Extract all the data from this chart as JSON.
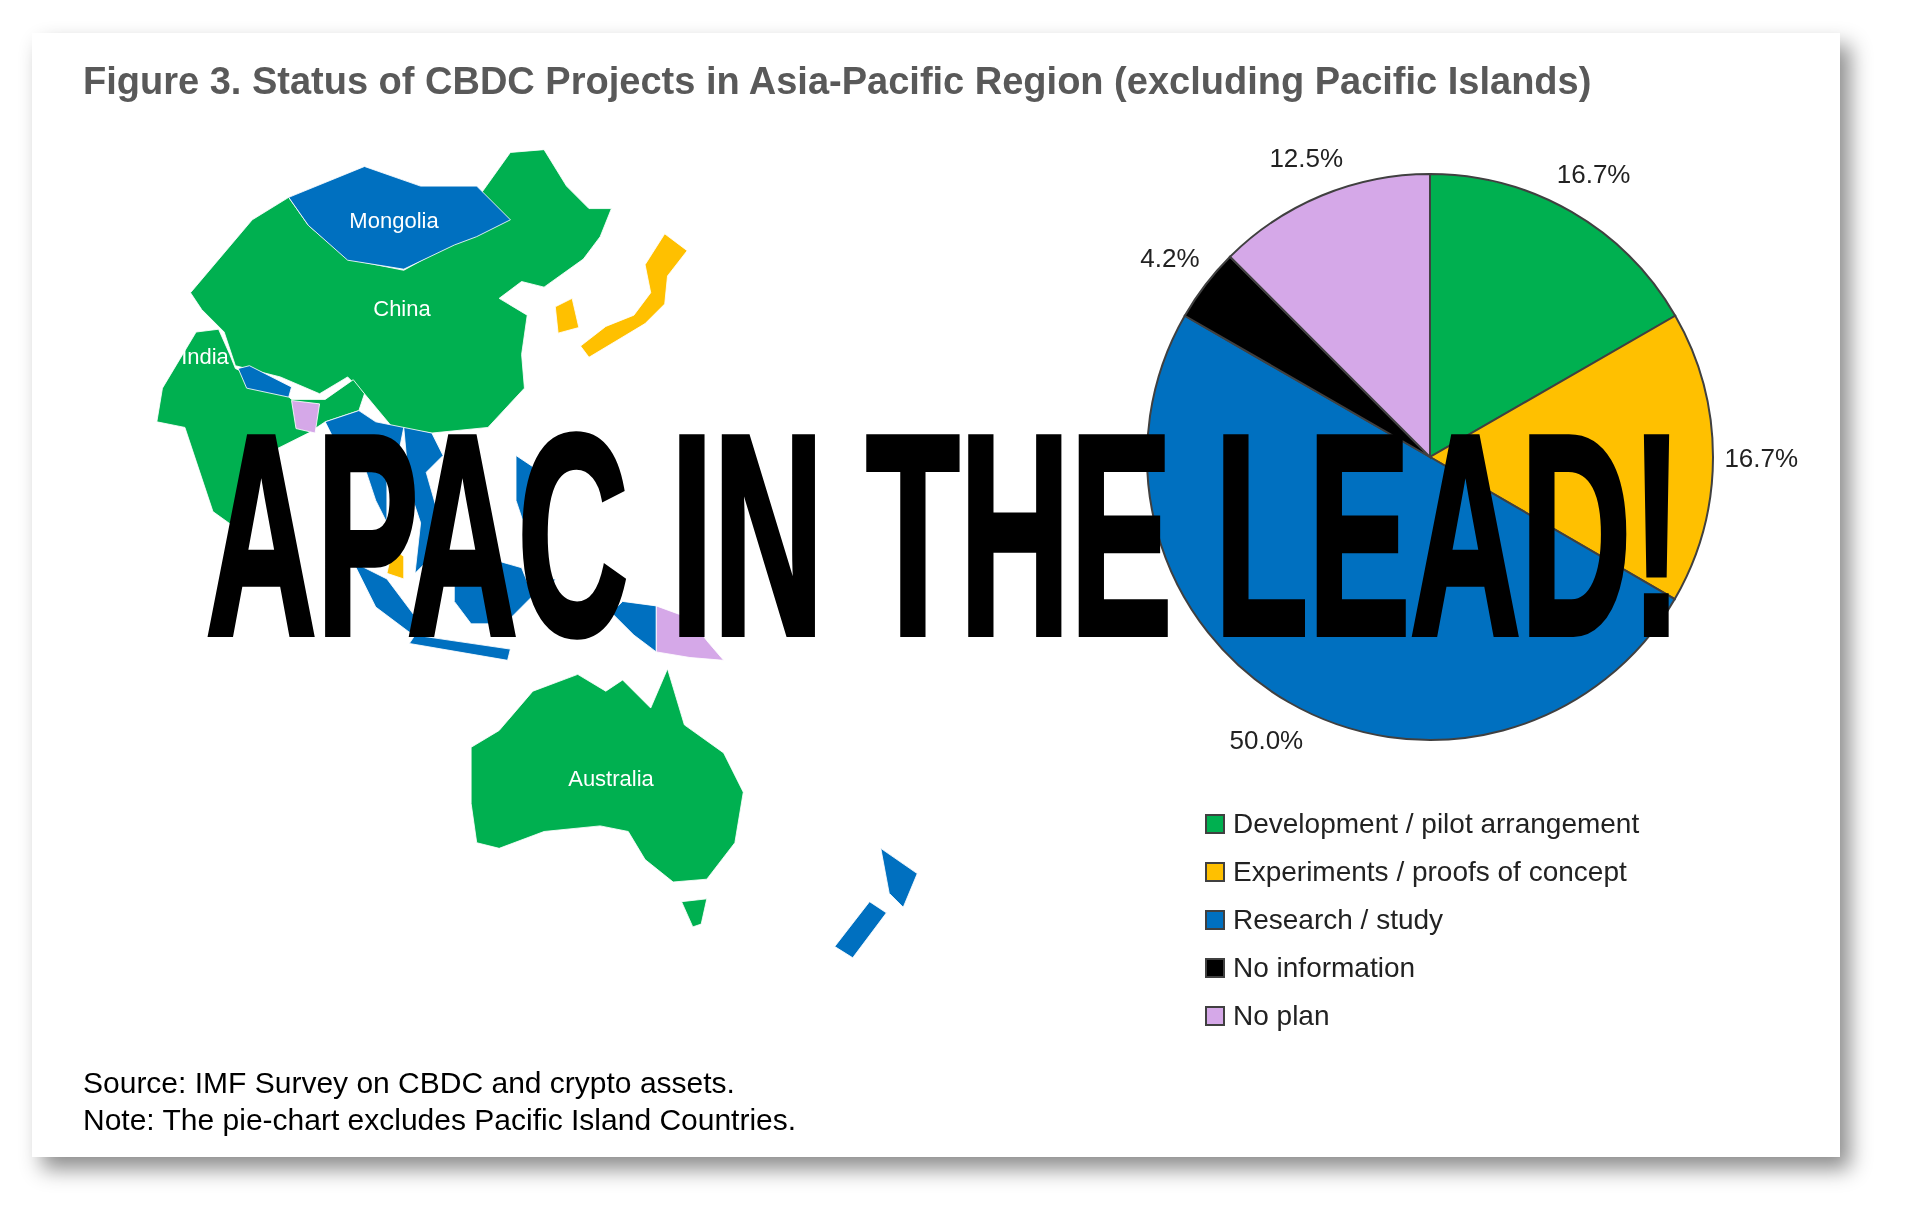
{
  "chart_data": {
    "type": "pie",
    "title": "Figure 3. Status of CBDC Projects in Asia-Pacific Region (excluding Pacific Islands)",
    "categories": [
      "Development / pilot arrangement",
      "Experiments / proofs of concept",
      "Research / study",
      "No information",
      "No plan"
    ],
    "values": [
      16.7,
      16.7,
      50.0,
      4.2,
      12.5
    ],
    "colors": [
      "#00b050",
      "#ffc000",
      "#0070c0",
      "#000000",
      "#d5a8e8"
    ],
    "value_labels": [
      "16.7%",
      "16.7%",
      "50.0%",
      "4.2%",
      "12.5%"
    ],
    "legend": "bottom",
    "annotations": [
      "APAC IN THE LEAD!",
      "Mongolia",
      "China",
      "India",
      "Australia",
      "Source: IMF Survey on CBDC and crypto assets.",
      "Note: The pie-chart excludes Pacific Island Countries."
    ]
  }
}
